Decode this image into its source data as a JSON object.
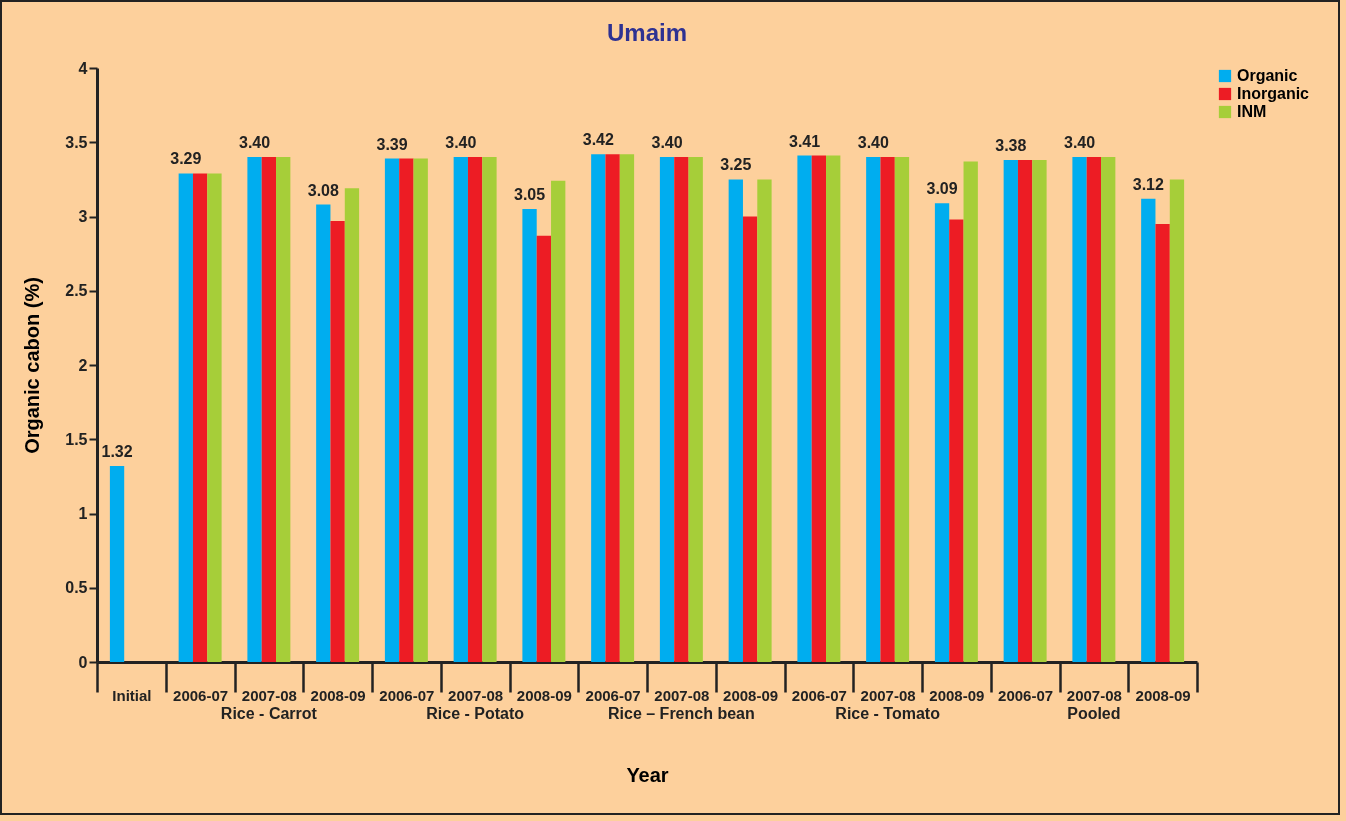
{
  "chart_data": {
    "type": "bar",
    "title": "Umaim",
    "xlabel": "Year",
    "ylabel": "Organic cabon (%)",
    "categories": [
      "Initial",
      "2006-07",
      "2007-08",
      "2008-09",
      "2006-07",
      "2007-08",
      "2008-09",
      "2006-07",
      "2007-08",
      "2008-09",
      "2006-07",
      "2007-08",
      "2008-09",
      "2006-07",
      "2007-08",
      "2008-09"
    ],
    "annotations": [
      "Rice - Carrot",
      "Rice - Potato",
      "Rice – French bean",
      "Rice - Tomato",
      "Pooled"
    ],
    "series": [
      {
        "name": "Organic",
        "color": "#00adef",
        "values": [
          1.32,
          3.29,
          3.4,
          3.08,
          3.39,
          3.4,
          3.05,
          3.42,
          3.4,
          3.25,
          3.41,
          3.4,
          3.09,
          3.38,
          3.4,
          3.12
        ],
        "value_labels": [
          "1.32",
          "3.29",
          "3.40",
          "3.08",
          "3.39",
          "3.40",
          "3.05",
          "3.42",
          "3.40",
          "3.25",
          "3.41",
          "3.40",
          "3.09",
          "3.38",
          "3.40",
          "3.12"
        ]
      },
      {
        "name": "Inorganic",
        "color": "#ed1c24",
        "values": [
          null,
          3.29,
          3.4,
          2.97,
          3.39,
          3.4,
          2.87,
          3.42,
          3.4,
          3.0,
          3.41,
          3.4,
          2.98,
          3.38,
          3.4,
          2.95
        ]
      },
      {
        "name": "INM",
        "color": "#a6ce39",
        "values": [
          null,
          3.29,
          3.4,
          3.19,
          3.39,
          3.4,
          3.24,
          3.42,
          3.4,
          3.25,
          3.41,
          3.4,
          3.37,
          3.38,
          3.4,
          3.25
        ]
      }
    ],
    "ylim": [
      0,
      4
    ],
    "yticks": [
      0,
      0.5,
      1,
      1.5,
      2,
      2.5,
      3,
      3.5,
      4
    ],
    "grid": false,
    "legend": "right"
  }
}
